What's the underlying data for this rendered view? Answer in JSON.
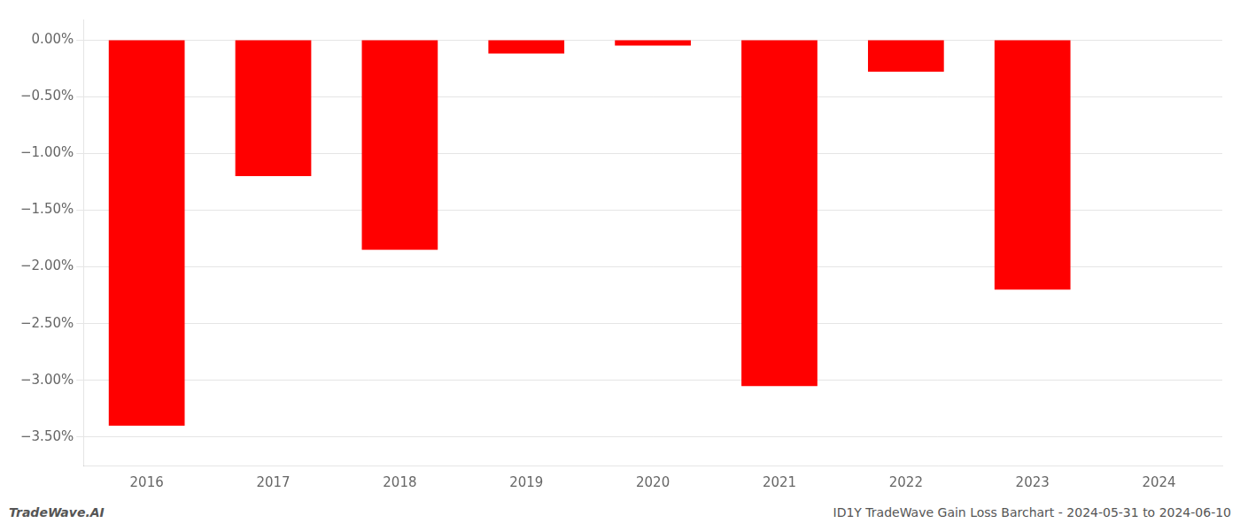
{
  "chart_data": {
    "type": "bar",
    "categories": [
      "2016",
      "2017",
      "2018",
      "2019",
      "2020",
      "2021",
      "2022",
      "2023",
      "2024"
    ],
    "values": [
      -3.4,
      -1.2,
      -1.85,
      -0.12,
      -0.05,
      -3.05,
      -0.28,
      -2.2,
      0.0
    ],
    "color": "#ff0000",
    "ylim": [
      -3.75,
      0.18
    ],
    "yticks": [
      {
        "value": 0.0,
        "label": "0.00%"
      },
      {
        "value": -0.5,
        "label": "−0.50%"
      },
      {
        "value": -1.0,
        "label": "−1.00%"
      },
      {
        "value": -1.5,
        "label": "−1.50%"
      },
      {
        "value": -2.0,
        "label": "−2.00%"
      },
      {
        "value": -2.5,
        "label": "−2.50%"
      },
      {
        "value": -3.0,
        "label": "−3.00%"
      },
      {
        "value": -3.5,
        "label": "−3.50%"
      }
    ],
    "grid": true,
    "annotations": [
      "TradeWave.AI",
      "ID1Y TradeWave Gain Loss Barchart - 2024-05-31 to 2024-06-10"
    ]
  }
}
